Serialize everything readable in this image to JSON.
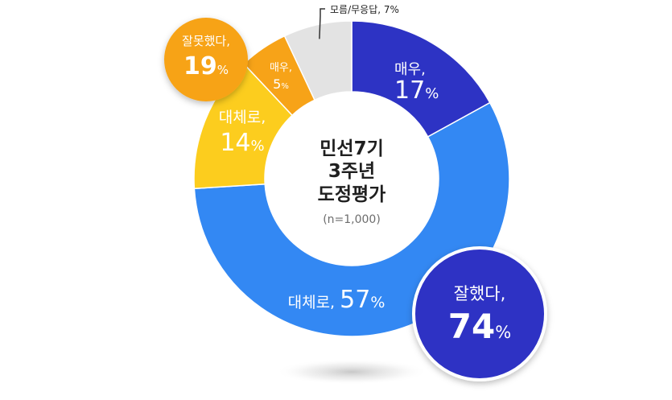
{
  "chart_data": {
    "type": "donut",
    "title_lines": [
      "민선7기",
      "3주년",
      "도정평가"
    ],
    "sample_note": "(n=1,000)",
    "segments": [
      {
        "key": "very_good",
        "label": "매우,",
        "value": 17,
        "color": "#2d33c4"
      },
      {
        "key": "fairly_good",
        "label": "대체로,",
        "value": 57,
        "color": "#3388f3"
      },
      {
        "key": "fairly_bad",
        "label": "대체로,",
        "value": 14,
        "color": "#fccd1e"
      },
      {
        "key": "very_bad",
        "label": "매우,",
        "value": 5,
        "color": "#f7a318"
      },
      {
        "key": "unknown",
        "label": "모름/무응답, 7%",
        "value": 7,
        "color": "#e3e3e3"
      }
    ],
    "summaries": [
      {
        "key": "good_total",
        "label": "잘했다,",
        "value": 74,
        "color": "#2d33c4"
      },
      {
        "key": "bad_total",
        "label": "잘못했다,",
        "value": 19,
        "color": "#f7a318"
      }
    ],
    "unit": "%"
  }
}
